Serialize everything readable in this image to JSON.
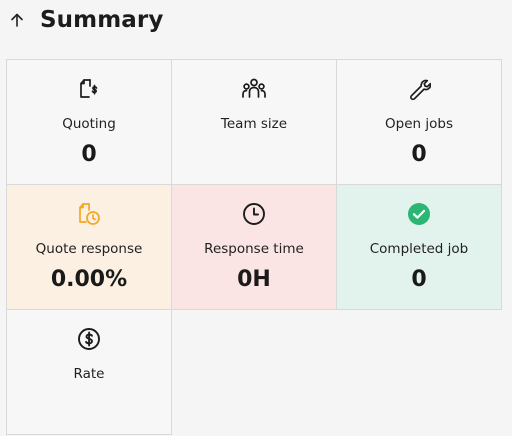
{
  "header": {
    "title": "Summary",
    "back_icon": "arrow-up-icon"
  },
  "cards": [
    {
      "label": "Quoting",
      "value": "0",
      "icon": "file-dollar-icon"
    },
    {
      "label": "Team size",
      "value": "",
      "icon": "team-icon"
    },
    {
      "label": "Open jobs",
      "value": "0",
      "icon": "wrench-icon"
    },
    {
      "label": "Quote response",
      "value": "0.00%",
      "icon": "file-clock-icon",
      "accent": "#f5a623"
    },
    {
      "label": "Response time",
      "value": "0H",
      "icon": "clock-icon"
    },
    {
      "label": "Completed job",
      "value": "0",
      "icon": "check-circle-icon",
      "accent": "#2bb673"
    },
    {
      "label": "Rate",
      "value": "",
      "icon": "dollar-circle-icon"
    }
  ],
  "colors": {
    "quote_response_bg": "#fbf0e2",
    "response_time_bg": "#fae4e4",
    "completed_job_bg": "#e1f3ec"
  }
}
